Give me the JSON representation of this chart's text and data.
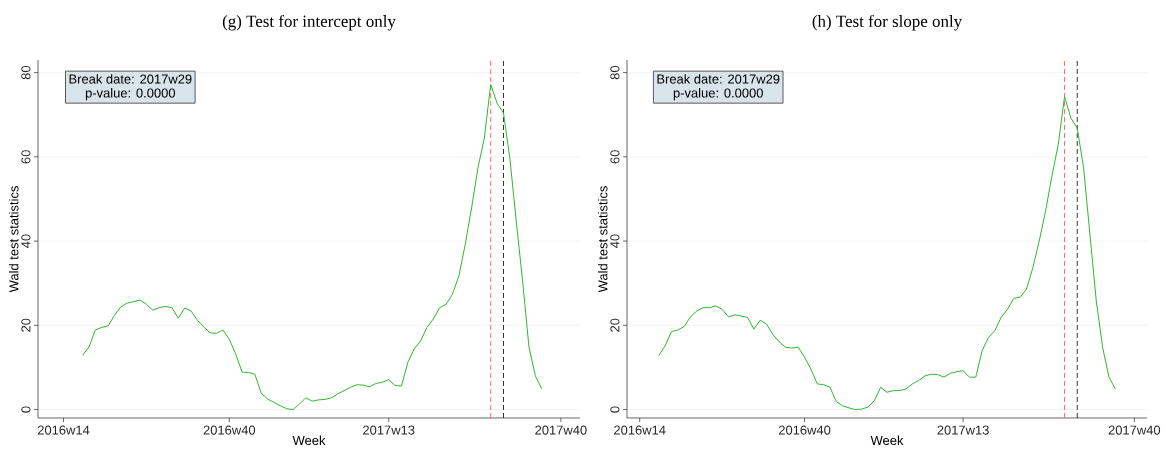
{
  "chart_data": [
    {
      "type": "line",
      "title": "(g) Test for intercept only",
      "xlabel": "Week",
      "ylabel": "Wald test statistics",
      "categories": [
        "2016w14",
        null,
        null,
        null,
        null,
        null,
        null,
        null,
        null,
        null,
        null,
        null,
        null,
        null,
        null,
        null,
        null,
        null,
        null,
        null,
        null,
        null,
        null,
        null,
        null,
        null,
        "2016w40",
        null,
        null,
        null,
        null,
        null,
        null,
        null,
        null,
        null,
        null,
        null,
        null,
        null,
        null,
        null,
        null,
        null,
        null,
        null,
        null,
        null,
        null,
        null,
        null,
        "2017w13",
        null,
        null,
        null,
        null,
        null,
        null,
        null,
        null,
        null,
        null,
        null,
        null,
        null,
        null,
        null,
        null,
        null,
        null,
        null,
        null,
        null,
        null,
        null,
        null,
        null,
        null,
        "2017w40"
      ],
      "series": [
        {
          "color": "#2eb82e",
          "values": [
            null,
            null,
            null,
            12.9,
            14.9,
            18.9,
            19.5,
            19.9,
            22.4,
            24.4,
            25.3,
            25.6,
            26.0,
            25.0,
            23.6,
            24.2,
            24.5,
            24.2,
            21.7,
            24.1,
            23.4,
            21.2,
            19.6,
            18.2,
            18.1,
            18.9,
            16.7,
            13.2,
            8.9,
            8.8,
            8.4,
            3.9,
            2.5,
            1.7,
            0.9,
            0.2,
            0.0,
            1.3,
            2.8,
            2.0,
            2.3,
            2.4,
            2.8,
            3.7,
            4.5,
            5.3,
            5.9,
            5.8,
            5.4,
            6.2,
            6.5,
            7.1,
            5.7,
            5.6,
            11.2,
            14.4,
            16.3,
            19.5,
            21.5,
            24.2,
            25.0,
            27.4,
            31.7,
            39.2,
            47.9,
            57.4,
            64.5,
            77.2,
            72.7,
            70.4,
            59.7,
            44.7,
            30.5,
            14.8,
            8.0,
            4.9,
            null,
            null,
            null
          ]
        }
      ],
      "ylim": [
        -2,
        83
      ],
      "yticks": [
        0,
        20,
        40,
        60,
        80
      ],
      "grid": "y",
      "annotations": [
        "Break date: 2017w29",
        "p-value:   0.0000"
      ]
    },
    {
      "type": "line",
      "title": "(h) Test for slope only",
      "xlabel": "Week",
      "ylabel": "Wald test statistics",
      "categories": [
        "2016w14",
        null,
        null,
        null,
        null,
        null,
        null,
        null,
        null,
        null,
        null,
        null,
        null,
        null,
        null,
        null,
        null,
        null,
        null,
        null,
        null,
        null,
        null,
        null,
        null,
        null,
        "2016w40",
        null,
        null,
        null,
        null,
        null,
        null,
        null,
        null,
        null,
        null,
        null,
        null,
        null,
        null,
        null,
        null,
        null,
        null,
        null,
        null,
        null,
        null,
        null,
        null,
        "2017w13",
        null,
        null,
        null,
        null,
        null,
        null,
        null,
        null,
        null,
        null,
        null,
        null,
        null,
        null,
        null,
        null,
        null,
        null,
        null,
        null,
        null,
        null,
        null,
        null,
        null,
        null,
        "2017w40"
      ],
      "series": [
        {
          "color": "#2eb82e",
          "values": [
            null,
            null,
            null,
            12.8,
            15.1,
            18.5,
            18.9,
            19.7,
            22.0,
            23.4,
            24.2,
            24.2,
            24.6,
            23.8,
            22.0,
            22.5,
            22.2,
            21.9,
            19.1,
            21.2,
            20.3,
            17.8,
            16.1,
            14.8,
            14.6,
            14.8,
            12.4,
            9.6,
            6.1,
            5.9,
            5.3,
            1.9,
            0.9,
            0.4,
            0.0,
            0.1,
            0.6,
            2.1,
            5.3,
            4.1,
            4.5,
            4.5,
            4.9,
            6.1,
            6.9,
            8.0,
            8.4,
            8.3,
            7.7,
            8.6,
            9.0,
            9.2,
            7.7,
            7.7,
            14.0,
            17.1,
            18.7,
            21.9,
            23.8,
            26.4,
            26.7,
            28.6,
            33.7,
            40.0,
            47.1,
            55.4,
            62.9,
            74.3,
            69.2,
            66.8,
            57.4,
            41.6,
            25.8,
            14.8,
            7.7,
            4.9,
            null,
            null,
            null
          ]
        }
      ],
      "ylim": [
        -2,
        83
      ],
      "yticks": [
        0,
        20,
        40,
        60,
        80
      ],
      "grid": "y",
      "annotations": [
        "Break date: 2017w29",
        "p-value:   0.0000"
      ]
    }
  ]
}
